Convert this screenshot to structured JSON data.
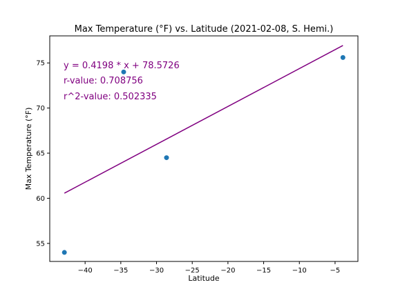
{
  "chart_data": {
    "type": "scatter",
    "title": "Max Temperature (°F) vs. Latitude (2021-02-08, S. Hemi.)",
    "xlabel": "Latitude",
    "ylabel": "Max Temperature (°F)",
    "xlim": [
      -44.95,
      -1.8
    ],
    "ylim": [
      53.0,
      78.0
    ],
    "xticks": [
      -40,
      -35,
      -30,
      -25,
      -20,
      -15,
      -10,
      -5
    ],
    "xtick_labels": [
      "−40",
      "−35",
      "−30",
      "−25",
      "−20",
      "−15",
      "−10",
      "−5"
    ],
    "yticks": [
      55,
      60,
      65,
      70,
      75
    ],
    "ytick_labels": [
      "55",
      "60",
      "65",
      "70",
      "75"
    ],
    "grid": false,
    "series": [
      {
        "x": [
          -42.9,
          -34.6,
          -28.6,
          -3.9
        ],
        "y": [
          54.0,
          74.0,
          64.5,
          75.6
        ],
        "color": "#1f77b4"
      }
    ],
    "regression": {
      "slope": 0.4198,
      "intercept": 78.5726,
      "x_range": [
        -42.9,
        -3.9
      ],
      "color": "#800080"
    },
    "annotations": [
      "y = 0.4198 * x + 78.5726",
      "r-value: 0.708756",
      "r^2-value: 0.502335"
    ]
  }
}
